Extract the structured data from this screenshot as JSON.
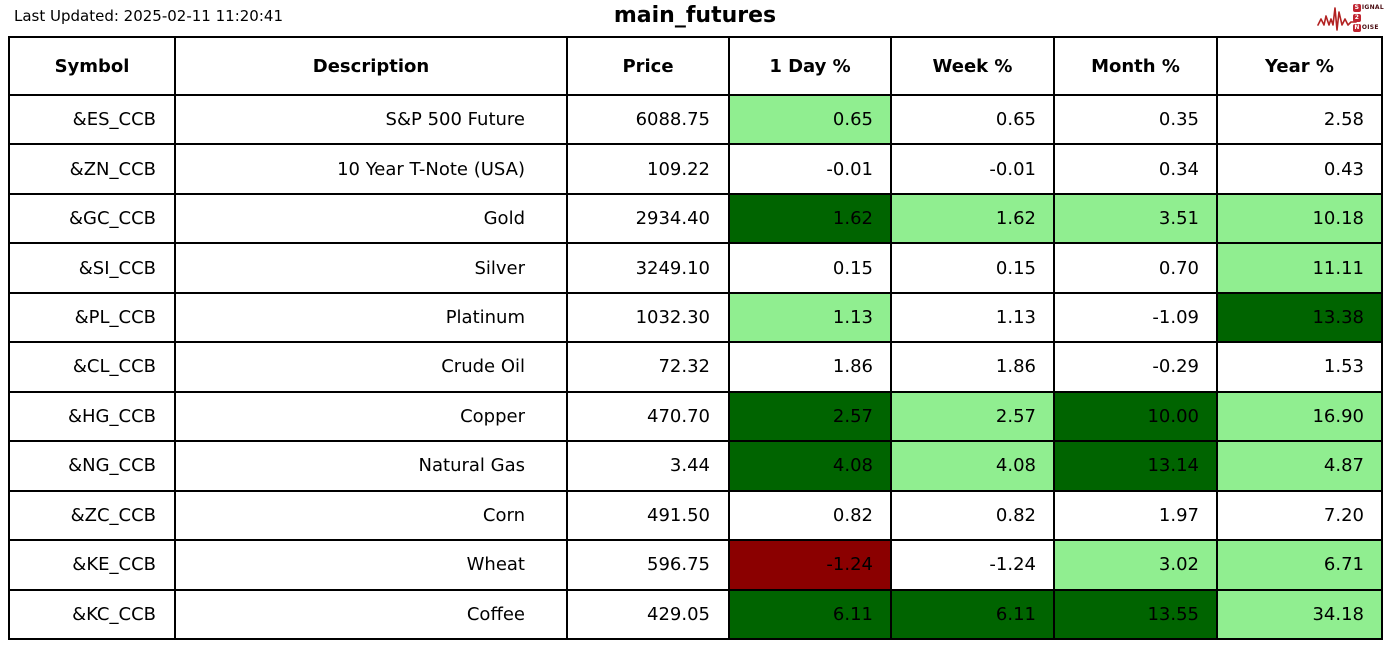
{
  "header": {
    "last_updated": "Last Updated: 2025-02-11 11:20:41",
    "title": "main_futures",
    "logo": {
      "line1_letter": "S",
      "line1_rest": "IGNAL",
      "line2_letter": "2",
      "line2_rest": "",
      "line3_letter": "N",
      "line3_rest": "OISE"
    }
  },
  "colors": {
    "positive_strong": "#006400",
    "positive_mild": "#90EE90",
    "negative_strong": "#8B0000",
    "neutral": "#FFFFFF",
    "logo_red": "#B22222"
  },
  "chart_data": {
    "type": "table",
    "title": "main_futures",
    "columns": [
      "Symbol",
      "Description",
      "Price",
      "1 Day %",
      "Week %",
      "Month %",
      "Year %"
    ],
    "rows": [
      {
        "symbol": "&ES_CCB",
        "description": "S&P 500 Future",
        "price": "6088.75",
        "day_pct": "0.65",
        "week_pct": "0.65",
        "month_pct": "0.35",
        "year_pct": "2.58",
        "cell_colors": [
          "positive_mild",
          "neutral",
          "neutral",
          "neutral"
        ]
      },
      {
        "symbol": "&ZN_CCB",
        "description": "10 Year T-Note (USA)",
        "price": "109.22",
        "day_pct": "-0.01",
        "week_pct": "-0.01",
        "month_pct": "0.34",
        "year_pct": "0.43",
        "cell_colors": [
          "neutral",
          "neutral",
          "neutral",
          "neutral"
        ]
      },
      {
        "symbol": "&GC_CCB",
        "description": "Gold",
        "price": "2934.40",
        "day_pct": "1.62",
        "week_pct": "1.62",
        "month_pct": "3.51",
        "year_pct": "10.18",
        "cell_colors": [
          "positive_strong",
          "positive_mild",
          "positive_mild",
          "positive_mild"
        ]
      },
      {
        "symbol": "&SI_CCB",
        "description": "Silver",
        "price": "3249.10",
        "day_pct": "0.15",
        "week_pct": "0.15",
        "month_pct": "0.70",
        "year_pct": "11.11",
        "cell_colors": [
          "neutral",
          "neutral",
          "neutral",
          "positive_mild"
        ]
      },
      {
        "symbol": "&PL_CCB",
        "description": "Platinum",
        "price": "1032.30",
        "day_pct": "1.13",
        "week_pct": "1.13",
        "month_pct": "-1.09",
        "year_pct": "13.38",
        "cell_colors": [
          "positive_mild",
          "neutral",
          "neutral",
          "positive_strong"
        ]
      },
      {
        "symbol": "&CL_CCB",
        "description": "Crude Oil",
        "price": "72.32",
        "day_pct": "1.86",
        "week_pct": "1.86",
        "month_pct": "-0.29",
        "year_pct": "1.53",
        "cell_colors": [
          "neutral",
          "neutral",
          "neutral",
          "neutral"
        ]
      },
      {
        "symbol": "&HG_CCB",
        "description": "Copper",
        "price": "470.70",
        "day_pct": "2.57",
        "week_pct": "2.57",
        "month_pct": "10.00",
        "year_pct": "16.90",
        "cell_colors": [
          "positive_strong",
          "positive_mild",
          "positive_strong",
          "positive_mild"
        ]
      },
      {
        "symbol": "&NG_CCB",
        "description": "Natural Gas",
        "price": "3.44",
        "day_pct": "4.08",
        "week_pct": "4.08",
        "month_pct": "13.14",
        "year_pct": "4.87",
        "cell_colors": [
          "positive_strong",
          "positive_mild",
          "positive_strong",
          "positive_mild"
        ]
      },
      {
        "symbol": "&ZC_CCB",
        "description": "Corn",
        "price": "491.50",
        "day_pct": "0.82",
        "week_pct": "0.82",
        "month_pct": "1.97",
        "year_pct": "7.20",
        "cell_colors": [
          "neutral",
          "neutral",
          "neutral",
          "neutral"
        ]
      },
      {
        "symbol": "&KE_CCB",
        "description": "Wheat",
        "price": "596.75",
        "day_pct": "-1.24",
        "week_pct": "-1.24",
        "month_pct": "3.02",
        "year_pct": "6.71",
        "cell_colors": [
          "negative_strong",
          "neutral",
          "positive_mild",
          "positive_mild"
        ]
      },
      {
        "symbol": "&KC_CCB",
        "description": "Coffee",
        "price": "429.05",
        "day_pct": "6.11",
        "week_pct": "6.11",
        "month_pct": "13.55",
        "year_pct": "34.18",
        "cell_colors": [
          "positive_strong",
          "positive_strong",
          "positive_strong",
          "positive_mild"
        ]
      }
    ]
  }
}
